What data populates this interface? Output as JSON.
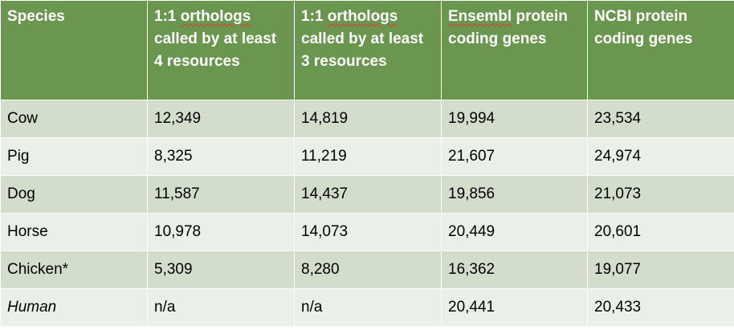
{
  "table": {
    "headers": [
      "Species",
      "1:1 orthologs called by at least 4 resources",
      "1:1 orthologs called by at least 3 resources",
      "Ensembl protein coding genes",
      "NCBI protein coding genes"
    ],
    "header_squiggly_words": [
      "orthologs",
      "Ensembl"
    ],
    "rows": [
      [
        "Cow",
        "12,349",
        "14,819",
        "19,994",
        "23,534"
      ],
      [
        "Pig",
        "8,325",
        "11,219",
        "21,607",
        "24,974"
      ],
      [
        "Dog",
        "11,587",
        "14,437",
        "19,856",
        "21,073"
      ],
      [
        "Horse",
        "10,978",
        "14,073",
        "20,449",
        "20,601"
      ],
      [
        "Chicken*",
        "5,309",
        "8,280",
        "16,362",
        "19,077"
      ],
      [
        "Human",
        "n/a",
        "n/a",
        "20,441",
        "20,433"
      ]
    ],
    "italic_species": [
      "Human"
    ],
    "colors": {
      "header_bg": "#6a9650",
      "header_text": "#ffffff",
      "row_odd_bg": "#d2ddcc",
      "row_even_bg": "#eaefe7",
      "spellcheck_underline": "#e53935"
    }
  }
}
